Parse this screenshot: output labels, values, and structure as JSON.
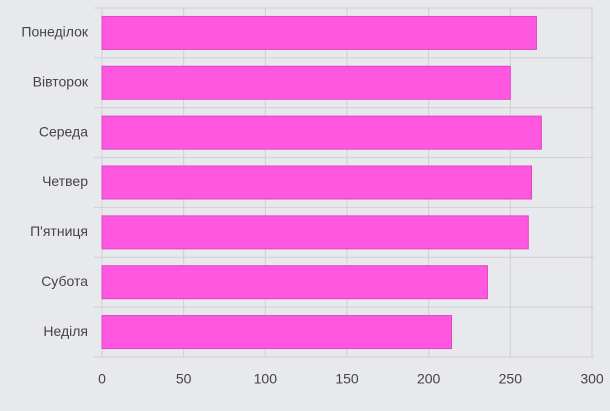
{
  "chart_data": {
    "type": "bar",
    "orientation": "horizontal",
    "categories": [
      "Понеділок",
      "Вівторок",
      "Середа",
      "Четвер",
      "П'ятниця",
      "Субота",
      "Неділя"
    ],
    "values": [
      266,
      250,
      269,
      263,
      261,
      236,
      214
    ],
    "color": "#ff57e0",
    "xlim": [
      0,
      300
    ],
    "xticks": [
      0,
      50,
      100,
      150,
      200,
      250,
      300
    ],
    "grid": true
  }
}
